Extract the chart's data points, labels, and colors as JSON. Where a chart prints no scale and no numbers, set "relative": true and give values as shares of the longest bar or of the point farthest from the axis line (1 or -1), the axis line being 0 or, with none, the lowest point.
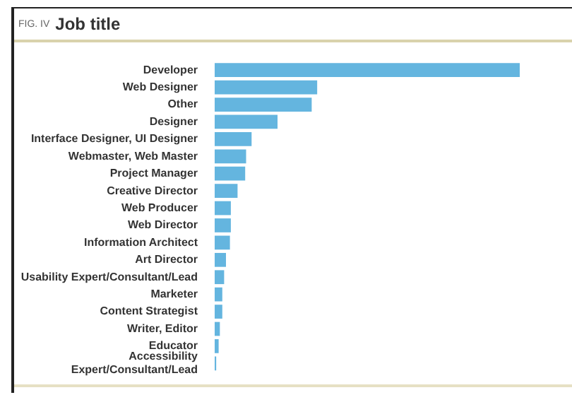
{
  "chart_data": {
    "type": "bar",
    "orientation": "horizontal",
    "relative": true,
    "subtitle": "FIG. IV",
    "title": "Job title",
    "categories": [
      "Developer",
      "Web Designer",
      "Other",
      "Designer",
      "Interface Designer, UI Designer",
      "Webmaster, Web Master",
      "Project Manager",
      "Creative Director",
      "Web Producer",
      "Web Director",
      "Information Architect",
      "Art Director",
      "Usability Expert/Consultant/Lead",
      "Marketer",
      "Content Strategist",
      "Writer, Editor",
      "Educator",
      "Accessibility Expert/Consultant/Lead"
    ],
    "values": [
      1,
      0.336,
      0.318,
      0.206,
      0.121,
      0.103,
      0.1,
      0.075,
      0.053,
      0.053,
      0.05,
      0.037,
      0.031,
      0.025,
      0.025,
      0.017,
      0.013,
      0.005
    ],
    "color": "#64b5df",
    "grid": false,
    "legend": false
  }
}
